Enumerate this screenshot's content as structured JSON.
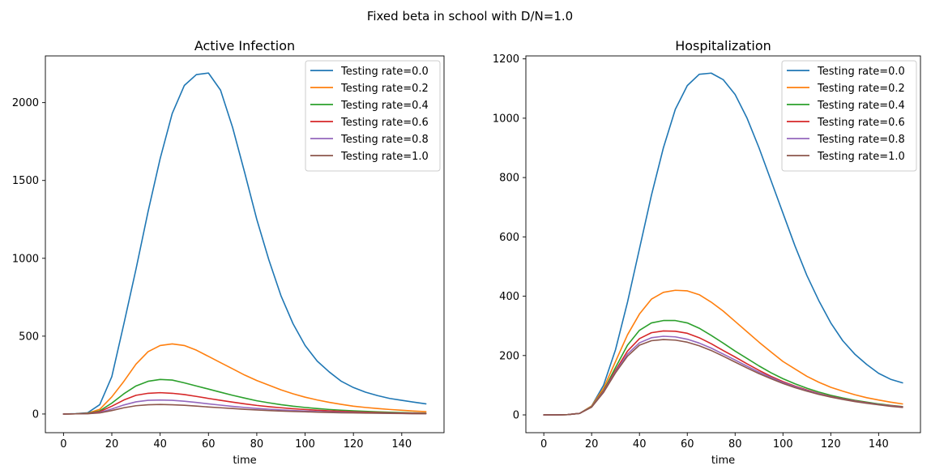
{
  "figure": {
    "suptitle": "Fixed beta in school with D/N=1.0"
  },
  "colors": [
    "#1f77b4",
    "#ff7f0e",
    "#2ca02c",
    "#d62728",
    "#9467bd",
    "#8c564b"
  ],
  "chart_data": [
    {
      "type": "line",
      "title": "Active Infection",
      "xlabel": "time",
      "ylabel": "",
      "xlim": [
        -7.5,
        157.5
      ],
      "ylim": [
        -120,
        2300
      ],
      "xticks": [
        0,
        20,
        40,
        60,
        80,
        100,
        120,
        140
      ],
      "yticks": [
        0,
        500,
        1000,
        1500,
        2000
      ],
      "grid": false,
      "legend": "top-right",
      "x": [
        0,
        5,
        10,
        15,
        20,
        25,
        30,
        35,
        40,
        45,
        50,
        55,
        60,
        65,
        70,
        75,
        80,
        85,
        90,
        95,
        100,
        105,
        110,
        115,
        120,
        125,
        130,
        135,
        140,
        145,
        150
      ],
      "series": [
        {
          "name": "Testing rate=0.0",
          "values": [
            0,
            2,
            8,
            60,
            240,
            580,
            930,
            1300,
            1640,
            1930,
            2110,
            2180,
            2190,
            2080,
            1840,
            1550,
            1250,
            990,
            760,
            580,
            440,
            340,
            270,
            210,
            170,
            140,
            118,
            100,
            88,
            76,
            65
          ]
        },
        {
          "name": "Testing rate=0.2",
          "values": [
            0,
            1,
            5,
            30,
            110,
            210,
            320,
            400,
            440,
            450,
            440,
            410,
            370,
            330,
            290,
            250,
            215,
            185,
            155,
            130,
            108,
            90,
            75,
            62,
            50,
            42,
            35,
            29,
            24,
            19,
            15
          ]
        },
        {
          "name": "Testing rate=0.4",
          "values": [
            0,
            1,
            4,
            20,
            70,
            130,
            180,
            210,
            222,
            218,
            200,
            180,
            160,
            140,
            120,
            102,
            85,
            72,
            60,
            50,
            42,
            35,
            29,
            24,
            20,
            17,
            14,
            11,
            9,
            7,
            5
          ]
        },
        {
          "name": "Testing rate=0.6",
          "values": [
            0,
            1,
            3,
            15,
            50,
            90,
            120,
            133,
            137,
            133,
            125,
            113,
            100,
            88,
            76,
            65,
            55,
            47,
            40,
            34,
            29,
            24,
            20,
            17,
            14,
            11,
            9,
            7,
            6,
            5,
            4
          ]
        },
        {
          "name": "Testing rate=0.8",
          "values": [
            0,
            1,
            2,
            10,
            32,
            58,
            78,
            88,
            90,
            88,
            82,
            74,
            65,
            57,
            49,
            42,
            36,
            31,
            26,
            22,
            19,
            16,
            13,
            11,
            9,
            7,
            6,
            5,
            4,
            3,
            2
          ]
        },
        {
          "name": "Testing rate=1.0",
          "values": [
            0,
            1,
            2,
            7,
            22,
            40,
            53,
            59,
            61,
            59,
            56,
            51,
            45,
            40,
            35,
            30,
            26,
            22,
            19,
            16,
            14,
            12,
            10,
            8,
            7,
            6,
            5,
            4,
            3,
            2,
            2
          ]
        }
      ]
    },
    {
      "type": "line",
      "title": "Hospitalization",
      "xlabel": "time",
      "ylabel": "",
      "xlim": [
        -7.5,
        157.5
      ],
      "ylim": [
        -60,
        1210
      ],
      "xticks": [
        0,
        20,
        40,
        60,
        80,
        100,
        120,
        140
      ],
      "yticks": [
        0,
        200,
        400,
        600,
        800,
        1000,
        1200
      ],
      "grid": false,
      "legend": "top-right",
      "x": [
        0,
        5,
        10,
        15,
        20,
        25,
        30,
        35,
        40,
        45,
        50,
        55,
        60,
        65,
        70,
        75,
        80,
        85,
        90,
        95,
        100,
        105,
        110,
        115,
        120,
        125,
        130,
        135,
        140,
        145,
        150
      ],
      "series": [
        {
          "name": "Testing rate=0.0",
          "values": [
            0,
            0,
            1,
            5,
            30,
            100,
            220,
            380,
            560,
            740,
            900,
            1030,
            1110,
            1148,
            1152,
            1130,
            1080,
            1000,
            900,
            790,
            680,
            570,
            470,
            385,
            310,
            250,
            205,
            170,
            140,
            120,
            108
          ]
        },
        {
          "name": "Testing rate=0.2",
          "values": [
            0,
            0,
            1,
            5,
            30,
            90,
            180,
            270,
            340,
            390,
            413,
            420,
            418,
            405,
            380,
            350,
            315,
            280,
            245,
            212,
            180,
            155,
            130,
            110,
            93,
            80,
            68,
            58,
            50,
            43,
            37
          ]
        },
        {
          "name": "Testing rate=0.4",
          "values": [
            0,
            0,
            1,
            5,
            28,
            82,
            160,
            235,
            285,
            310,
            318,
            318,
            310,
            292,
            268,
            242,
            215,
            190,
            165,
            142,
            122,
            105,
            90,
            77,
            66,
            57,
            49,
            43,
            37,
            32,
            28
          ]
        },
        {
          "name": "Testing rate=0.6",
          "values": [
            0,
            0,
            1,
            5,
            27,
            80,
            150,
            215,
            257,
            277,
            283,
            282,
            275,
            260,
            240,
            217,
            195,
            172,
            150,
            130,
            112,
            97,
            84,
            72,
            62,
            54,
            47,
            41,
            35,
            31,
            27
          ]
        },
        {
          "name": "Testing rate=0.8",
          "values": [
            0,
            0,
            1,
            5,
            27,
            78,
            145,
            205,
            243,
            260,
            265,
            263,
            255,
            242,
            225,
            205,
            185,
            164,
            144,
            126,
            109,
            95,
            82,
            71,
            61,
            53,
            46,
            40,
            35,
            30,
            26
          ]
        },
        {
          "name": "Testing rate=1.0",
          "values": [
            0,
            0,
            1,
            5,
            26,
            76,
            142,
            198,
            235,
            250,
            254,
            252,
            245,
            233,
            217,
            198,
            178,
            158,
            139,
            122,
            106,
            92,
            80,
            69,
            60,
            52,
            45,
            39,
            34,
            29,
            25
          ]
        }
      ]
    }
  ]
}
